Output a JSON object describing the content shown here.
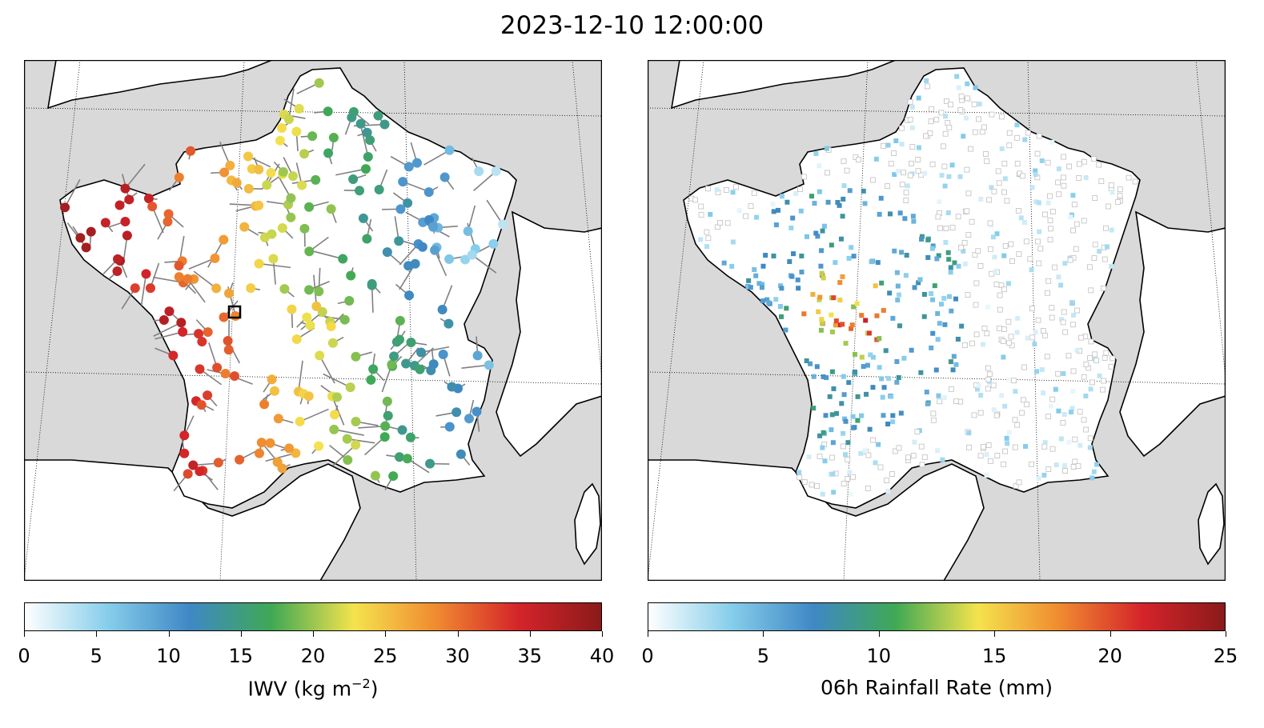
{
  "title": "2023-12-10 12:00:00",
  "left_panel": {
    "colorbar": {
      "label_text": "IWV (kg m",
      "label_sup": "−2",
      "label_close": ")",
      "ticks": [
        "0",
        "5",
        "10",
        "15",
        "20",
        "25",
        "30",
        "35",
        "40"
      ],
      "range": [
        0,
        40
      ]
    },
    "marker": "filled circle with wind arrow",
    "highlight": "black square station"
  },
  "right_panel": {
    "colorbar": {
      "label": "06h Rainfall Rate (mm)",
      "ticks": [
        "0",
        "5",
        "10",
        "15",
        "20",
        "25"
      ],
      "range": [
        0,
        25
      ]
    },
    "marker": "square"
  },
  "colors": {
    "land": "#ffffff",
    "sea": "#d9d9d9",
    "coast": "#000000",
    "border": "#000000",
    "arrow": "#808080",
    "colormap": [
      "#ffffff",
      "#87ceeb",
      "#3f88c5",
      "#3fa954",
      "#f4e34d",
      "#f08a30",
      "#d4242a",
      "#8b1a1a"
    ]
  }
}
